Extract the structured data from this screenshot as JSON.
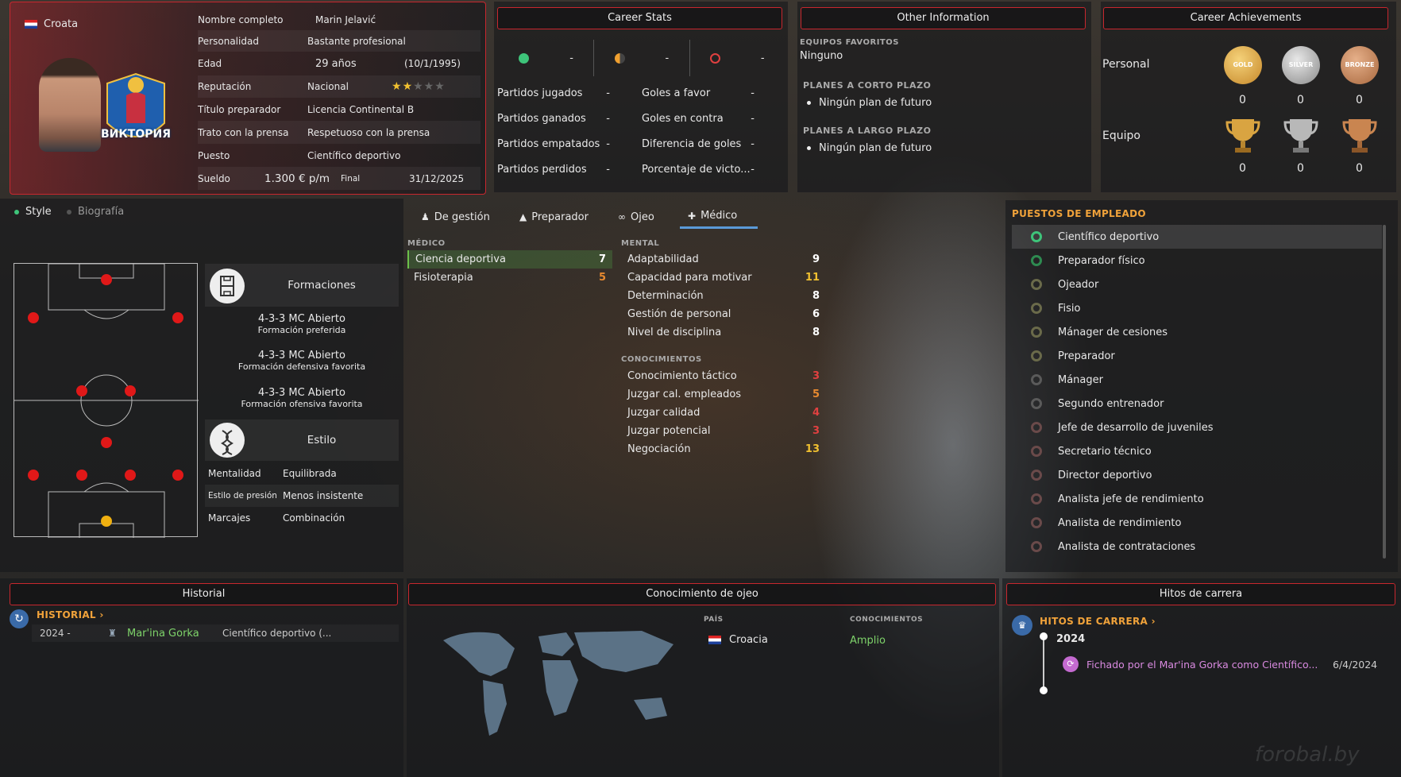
{
  "profile": {
    "nationality": "Croata",
    "club_logo_text": "ВИКТОРИЯ",
    "fields": [
      {
        "label": "Nombre completo",
        "value": "Marin Jelavić"
      },
      {
        "label": "Personalidad",
        "value": "Bastante profesional"
      },
      {
        "label": "Edad",
        "value": "29 años",
        "extra": "(10/1/1995)"
      },
      {
        "label": "Reputación",
        "value": "Nacional"
      },
      {
        "label": "Título preparador",
        "value": "Licencia Continental B"
      },
      {
        "label": "Trato con la prensa",
        "value": "Respetuoso con la prensa"
      },
      {
        "label": "Puesto",
        "value": "Científico deportivo"
      },
      {
        "label": "Sueldo",
        "value": "1.300 € p/m",
        "extra_label": "Final",
        "extra": "31/12/2025"
      }
    ],
    "reputation_stars": 1.5
  },
  "career_stats": {
    "title": "Career Stats",
    "indicators": [
      "-",
      "-",
      "-"
    ],
    "rows_left": [
      {
        "label": "Partidos jugados",
        "value": "-"
      },
      {
        "label": "Partidos ganados",
        "value": "-"
      },
      {
        "label": "Partidos empatados",
        "value": "-"
      },
      {
        "label": "Partidos perdidos",
        "value": "-"
      }
    ],
    "rows_right": [
      {
        "label": "Goles a favor",
        "value": "-"
      },
      {
        "label": "Goles en contra",
        "value": "-"
      },
      {
        "label": "Diferencia de goles",
        "value": "-"
      },
      {
        "label": "Porcentaje de victo...",
        "value": "-"
      }
    ]
  },
  "other_info": {
    "title": "Other Information",
    "fav_teams_label": "EQUIPOS FAVORITOS",
    "fav_teams_value": "Ninguno",
    "short_plans_label": "PLANES A CORTO PLAZO",
    "short_plans_value": "Ningún plan de futuro",
    "long_plans_label": "PLANES A LARGO PLAZO",
    "long_plans_value": "Ningún plan de futuro"
  },
  "achievements": {
    "title": "Career Achievements",
    "personal_label": "Personal",
    "team_label": "Equipo",
    "medals": [
      "GOLD",
      "SILVER",
      "BRONZE"
    ],
    "personal_counts": [
      "0",
      "0",
      "0"
    ],
    "team_counts": [
      "0",
      "0",
      "0"
    ],
    "colors": {
      "gold": "#d9a441",
      "silver": "#a8a8a8",
      "bronze": "#c08050"
    }
  },
  "left_tabs": {
    "style": "Style",
    "bio": "Biografía"
  },
  "formations": {
    "title": "Formaciones",
    "items": [
      {
        "name": "4-3-3 MC Abierto",
        "desc": "Formación preferida"
      },
      {
        "name": "4-3-3 MC Abierto",
        "desc": "Formación defensiva favorita"
      },
      {
        "name": "4-3-3 MC Abierto",
        "desc": "Formación ofensiva favorita"
      }
    ]
  },
  "style": {
    "title": "Estilo",
    "rows": [
      {
        "label": "Mentalidad",
        "value": "Equilibrada"
      },
      {
        "label": "Estilo de presión",
        "value": "Menos insistente"
      },
      {
        "label": "Marcajes",
        "value": "Combinación"
      }
    ]
  },
  "attr_tabs": [
    "De gestión",
    "Preparador",
    "Ojeo",
    "Médico"
  ],
  "attributes": {
    "medico_label": "MÉDICO",
    "medico": [
      {
        "label": "Ciencia deportiva",
        "value": "7"
      },
      {
        "label": "Fisioterapia",
        "value": "5"
      }
    ],
    "mental_label": "MENTAL",
    "mental": [
      {
        "label": "Adaptabilidad",
        "value": "9"
      },
      {
        "label": "Capacidad para motivar",
        "value": "11"
      },
      {
        "label": "Determinación",
        "value": "8"
      },
      {
        "label": "Gestión de personal",
        "value": "6"
      },
      {
        "label": "Nivel de disciplina",
        "value": "8"
      }
    ],
    "knowledge_label": "CONOCIMIENTOS",
    "knowledge": [
      {
        "label": "Conocimiento táctico",
        "value": "3"
      },
      {
        "label": "Juzgar cal. empleados",
        "value": "5"
      },
      {
        "label": "Juzgar calidad",
        "value": "4"
      },
      {
        "label": "Juzgar potencial",
        "value": "3"
      },
      {
        "label": "Negociación",
        "value": "13"
      }
    ]
  },
  "positions": {
    "title": "PUESTOS DE EMPLEADO",
    "items": [
      "Científico deportivo",
      "Preparador físico",
      "Ojeador",
      "Fisio",
      "Mánager de cesiones",
      "Preparador",
      "Mánager",
      "Segundo entrenador",
      "Jefe de desarrollo de juveniles",
      "Secretario técnico",
      "Director deportivo",
      "Analista jefe de rendimiento",
      "Analista de rendimiento",
      "Analista de contrataciones"
    ]
  },
  "historial": {
    "title": "Historial",
    "link": "HISTORIAL",
    "row": {
      "year": "2024 -",
      "club": "Mar'ina Gorka",
      "role": "Científico deportivo (..."
    }
  },
  "scouting": {
    "title": "Conocimiento de ojeo",
    "country_label": "PAÍS",
    "knowledge_label": "CONOCIMIENTOS",
    "country": "Croacia",
    "level": "Amplio"
  },
  "milestones": {
    "title": "Hitos de carrera",
    "link": "HITOS DE CARRERA",
    "year": "2024",
    "event": "Fichado por el Mar'ina Gorka como Científico...",
    "date": "6/4/2024"
  },
  "watermark": "forobal.by"
}
